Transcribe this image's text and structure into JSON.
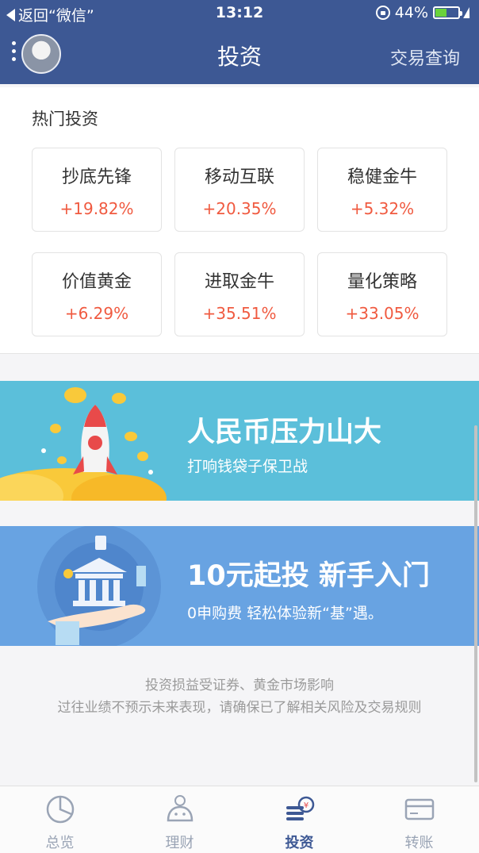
{
  "status_bar": {
    "back_label": "返回“微信”",
    "time": "13:12",
    "battery": "44%"
  },
  "nav": {
    "title": "投资",
    "right_action": "交易查询"
  },
  "hot": {
    "heading": "热门投资",
    "items": [
      {
        "name": "抄底先锋",
        "pct": "+19.82%"
      },
      {
        "name": "移动互联",
        "pct": "+20.35%"
      },
      {
        "name": "稳健金牛",
        "pct": "+5.32%"
      },
      {
        "name": "价值黄金",
        "pct": "+6.29%"
      },
      {
        "name": "进取金牛",
        "pct": "+35.51%"
      },
      {
        "name": "量化策略",
        "pct": "+33.05%"
      }
    ]
  },
  "banners": [
    {
      "title": "人民币压力山大",
      "subtitle": "打响钱袋子保卫战"
    },
    {
      "title": "10元起投  新手入门",
      "subtitle": "0申购费 轻松体验新“基”遇。"
    }
  ],
  "disclaimer": {
    "line1": "投资损益受证券、黄金市场影响",
    "line2": "过往业绩不预示未来表现，请确保已了解相关风险及交易规则"
  },
  "tabs": [
    {
      "label": "总览",
      "icon": "pie-chart-icon"
    },
    {
      "label": "理财",
      "icon": "piggy-bank-icon"
    },
    {
      "label": "投资",
      "icon": "coins-stack-icon"
    },
    {
      "label": "转账",
      "icon": "card-icon"
    }
  ],
  "colors": {
    "nav": "#3d5894",
    "up": "#f05a40",
    "banner1": "#5bbfda",
    "banner2": "#68a3e2"
  }
}
